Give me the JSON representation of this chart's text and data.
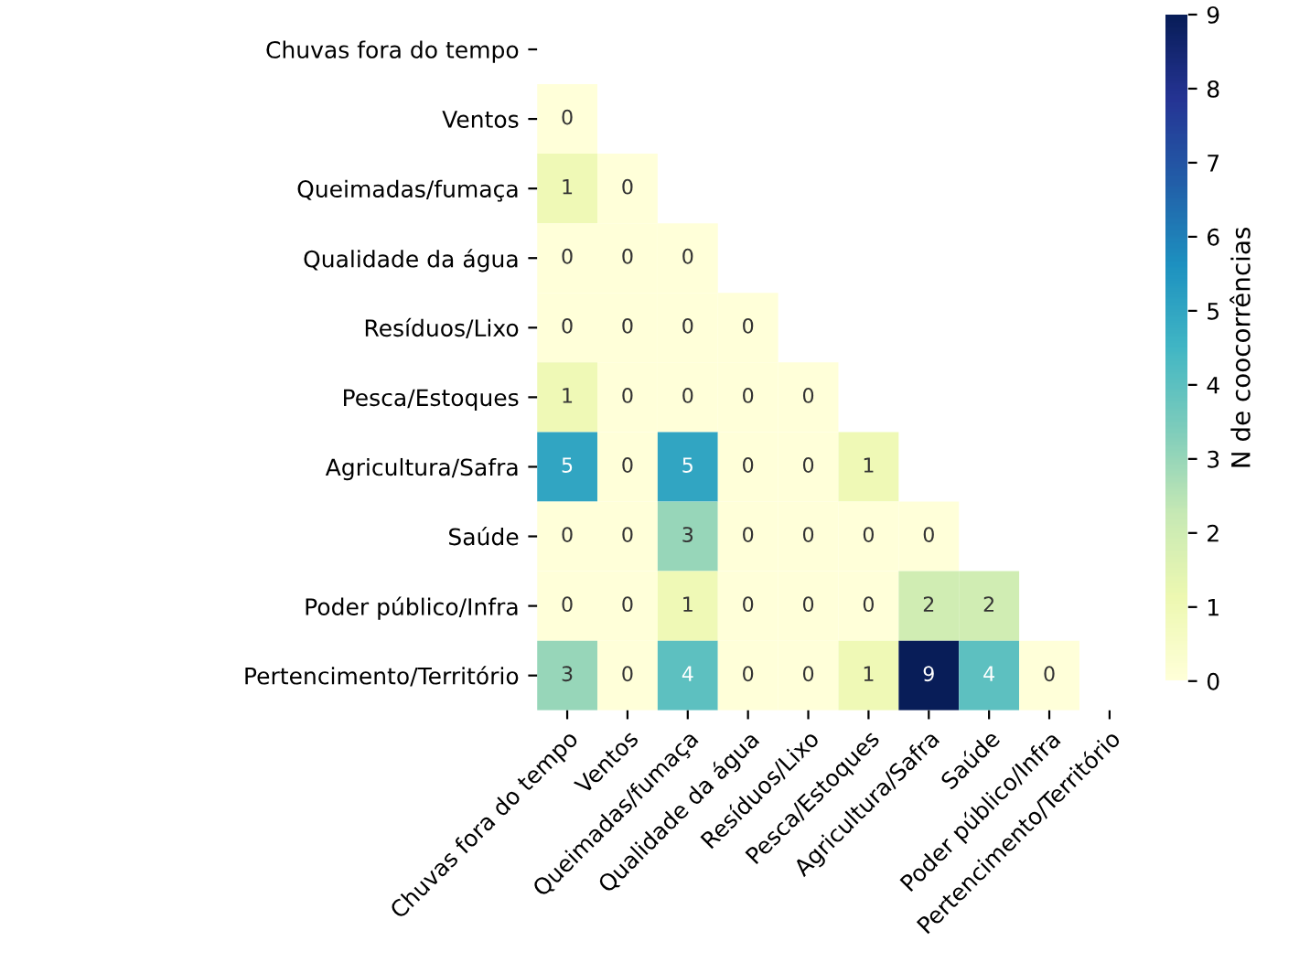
{
  "chart_data": {
    "type": "heatmap",
    "clabel": "N de coocorrências",
    "categories": [
      "Chuvas fora do tempo",
      "Ventos",
      "Queimadas/fumaça",
      "Qualidade da água",
      "Resíduos/Lixo",
      "Pesca/Estoques",
      "Agricultura/Safra",
      "Saúde",
      "Poder público/Infra",
      "Pertencimento/Território"
    ],
    "y_categories": [
      "Chuvas fora do tempo",
      "Ventos",
      "Queimadas/fumaça",
      "Qualidade da água",
      "Resíduos/Lixo",
      "Pesca/Estoques",
      "Agricultura/Safra",
      "Saúde",
      "Poder público/Infra",
      "Pertencimento/Território"
    ],
    "cells": [
      [
        null,
        null,
        null,
        null,
        null,
        null,
        null,
        null,
        null,
        null
      ],
      [
        0,
        null,
        null,
        null,
        null,
        null,
        null,
        null,
        null,
        null
      ],
      [
        1,
        0,
        null,
        null,
        null,
        null,
        null,
        null,
        null,
        null
      ],
      [
        0,
        0,
        0,
        null,
        null,
        null,
        null,
        null,
        null,
        null
      ],
      [
        0,
        0,
        0,
        0,
        null,
        null,
        null,
        null,
        null,
        null
      ],
      [
        1,
        0,
        0,
        0,
        0,
        null,
        null,
        null,
        null,
        null
      ],
      [
        5,
        0,
        5,
        0,
        0,
        1,
        null,
        null,
        null,
        null
      ],
      [
        0,
        0,
        3,
        0,
        0,
        0,
        0,
        null,
        null,
        null
      ],
      [
        0,
        0,
        1,
        0,
        0,
        0,
        2,
        2,
        null,
        null
      ],
      [
        3,
        0,
        4,
        0,
        0,
        1,
        9,
        4,
        0,
        null
      ]
    ],
    "clim": [
      0,
      9
    ],
    "cticks": [
      0,
      1,
      2,
      3,
      4,
      5,
      6,
      7,
      8,
      9
    ],
    "data_labels": true,
    "grid": false
  }
}
